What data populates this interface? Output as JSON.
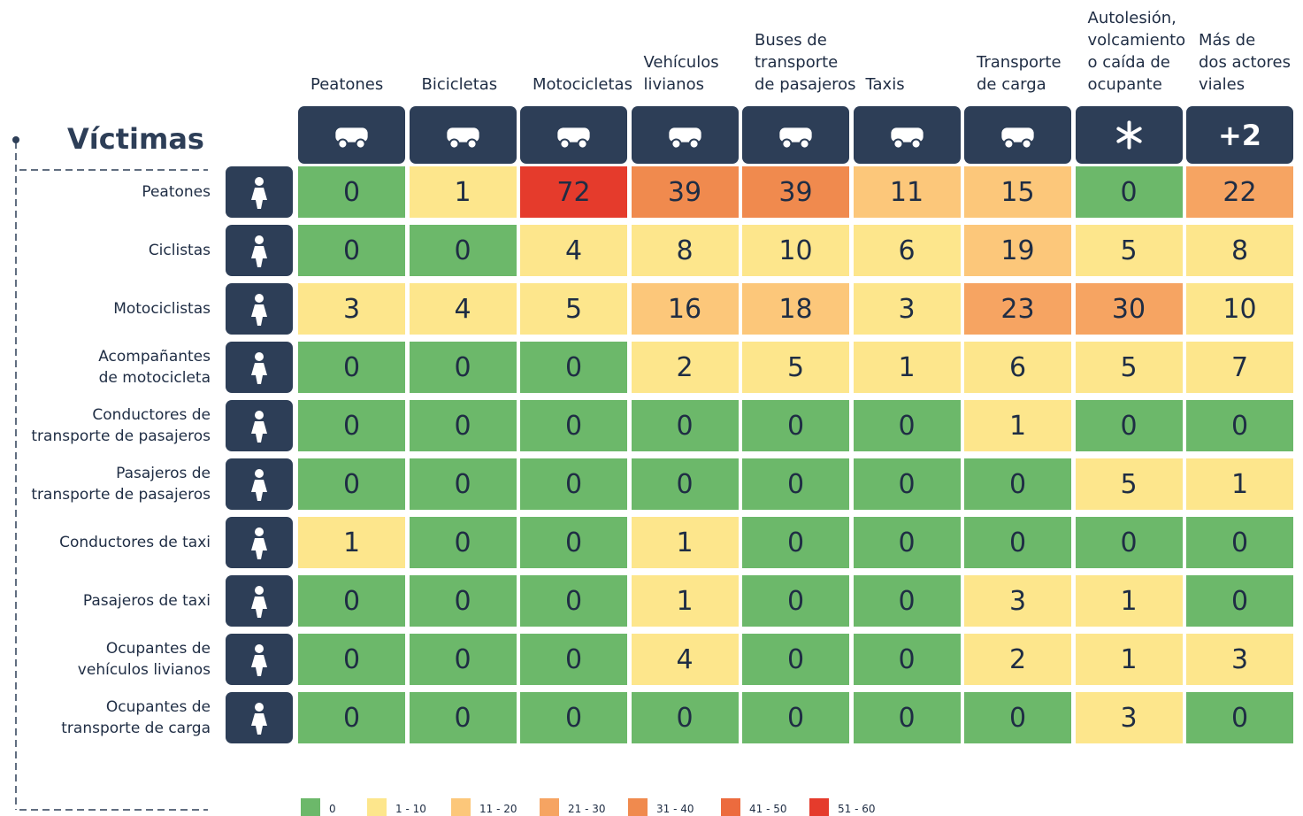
{
  "chart_data": {
    "type": "heatmap",
    "y_label": "Víctimas",
    "columns": [
      "Peatones",
      "Bicicletas",
      "Motocicletas",
      "Vehículos\nlivianos",
      "Buses de\ntransporte\nde pasajeros",
      "Taxis",
      "Transporte\nde carga",
      "Autolesión,\nvolcamiento\no caída de\nocupante",
      "Más de\ndos actores\nviales"
    ],
    "extra_icon_label": "+2",
    "rows": [
      "Peatones",
      "Ciclistas",
      "Motociclistas",
      "Acompañantes\nde motocicleta",
      "Conductores de\ntransporte de pasajeros",
      "Pasajeros de\ntransporte de pasajeros",
      "Conductores de taxi",
      "Pasajeros de taxi",
      "Ocupantes de\nvehículos livianos",
      "Ocupantes de\ntransporte de carga"
    ],
    "values": [
      [
        0,
        1,
        72,
        39,
        39,
        11,
        15,
        0,
        22
      ],
      [
        0,
        0,
        4,
        8,
        10,
        6,
        19,
        5,
        8
      ],
      [
        3,
        4,
        5,
        16,
        18,
        3,
        23,
        30,
        10
      ],
      [
        0,
        0,
        0,
        2,
        5,
        1,
        6,
        5,
        7
      ],
      [
        0,
        0,
        0,
        0,
        0,
        0,
        1,
        0,
        0
      ],
      [
        0,
        0,
        0,
        0,
        0,
        0,
        0,
        5,
        1
      ],
      [
        1,
        0,
        0,
        1,
        0,
        0,
        0,
        0,
        0
      ],
      [
        0,
        0,
        0,
        1,
        0,
        0,
        3,
        1,
        0
      ],
      [
        0,
        0,
        0,
        4,
        0,
        0,
        2,
        1,
        3
      ],
      [
        0,
        0,
        0,
        0,
        0,
        0,
        0,
        3,
        0
      ]
    ],
    "legend": [
      {
        "label": "0",
        "color": "#6cb86a"
      },
      {
        "label": "1 - 10",
        "color": "#fde68c"
      },
      {
        "label": "11 - 20",
        "color": "#fcc77a"
      },
      {
        "label": "21 - 30",
        "color": "#f6a462"
      },
      {
        "label": "31 - 40",
        "color": "#f08a4e"
      },
      {
        "label": "41 - 50",
        "color": "#ec6b3e"
      },
      {
        "label": "51 - 60",
        "color": "#e53b2c"
      }
    ]
  }
}
